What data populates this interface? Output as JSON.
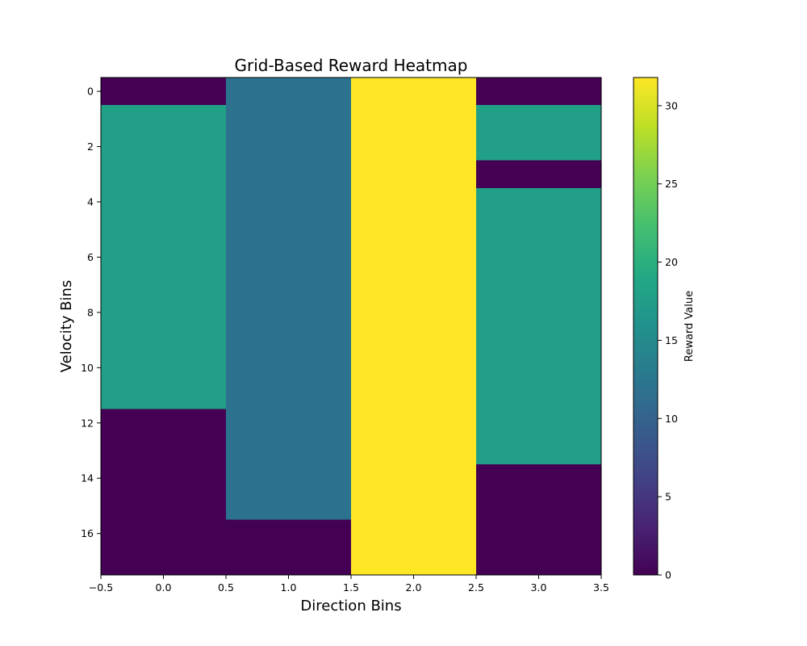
{
  "chart_data": {
    "type": "heatmap",
    "title": "Grid-Based Reward Heatmap",
    "xlabel": "Direction Bins",
    "ylabel": "Velocity Bins",
    "colorbar_label": "Reward Value",
    "colormap": "viridis",
    "x": [
      0,
      1,
      2,
      3
    ],
    "y": [
      0,
      1,
      2,
      3,
      4,
      5,
      6,
      7,
      8,
      9,
      10,
      11,
      12,
      13,
      14,
      15,
      16,
      17
    ],
    "xlim": [
      -0.5,
      3.5
    ],
    "ylim": [
      17.5,
      -0.5
    ],
    "y_inverted": true,
    "value_range": [
      0,
      31.8
    ],
    "values": [
      [
        0,
        12,
        31.8,
        0
      ],
      [
        18,
        12,
        31.8,
        18
      ],
      [
        18,
        12,
        31.8,
        18
      ],
      [
        18,
        12,
        31.8,
        0
      ],
      [
        18,
        12,
        31.8,
        18
      ],
      [
        18,
        12,
        31.8,
        18
      ],
      [
        18,
        12,
        31.8,
        18
      ],
      [
        18,
        12,
        31.8,
        18
      ],
      [
        18,
        12,
        31.8,
        18
      ],
      [
        18,
        12,
        31.8,
        18
      ],
      [
        18,
        12,
        31.8,
        18
      ],
      [
        18,
        12,
        31.8,
        18
      ],
      [
        0,
        12,
        31.8,
        18
      ],
      [
        0,
        12,
        31.8,
        18
      ],
      [
        0,
        12,
        31.8,
        0
      ],
      [
        0,
        12,
        31.8,
        0
      ],
      [
        0,
        0,
        31.8,
        0
      ],
      [
        0,
        0,
        31.8,
        0
      ]
    ],
    "x_ticks": [
      "−0.5",
      "0.0",
      "0.5",
      "1.0",
      "1.5",
      "2.0",
      "2.5",
      "3.0",
      "3.5"
    ],
    "x_tick_values": [
      -0.5,
      0,
      0.5,
      1,
      1.5,
      2,
      2.5,
      3,
      3.5
    ],
    "y_ticks": [
      "0",
      "2",
      "4",
      "6",
      "8",
      "10",
      "12",
      "14",
      "16"
    ],
    "y_tick_values": [
      0,
      2,
      4,
      6,
      8,
      10,
      12,
      14,
      16
    ],
    "colorbar_ticks": [
      "0",
      "5",
      "10",
      "15",
      "20",
      "25",
      "30"
    ],
    "colorbar_tick_values": [
      0,
      5,
      10,
      15,
      20,
      25,
      30
    ],
    "grid": false,
    "legend": "none"
  }
}
